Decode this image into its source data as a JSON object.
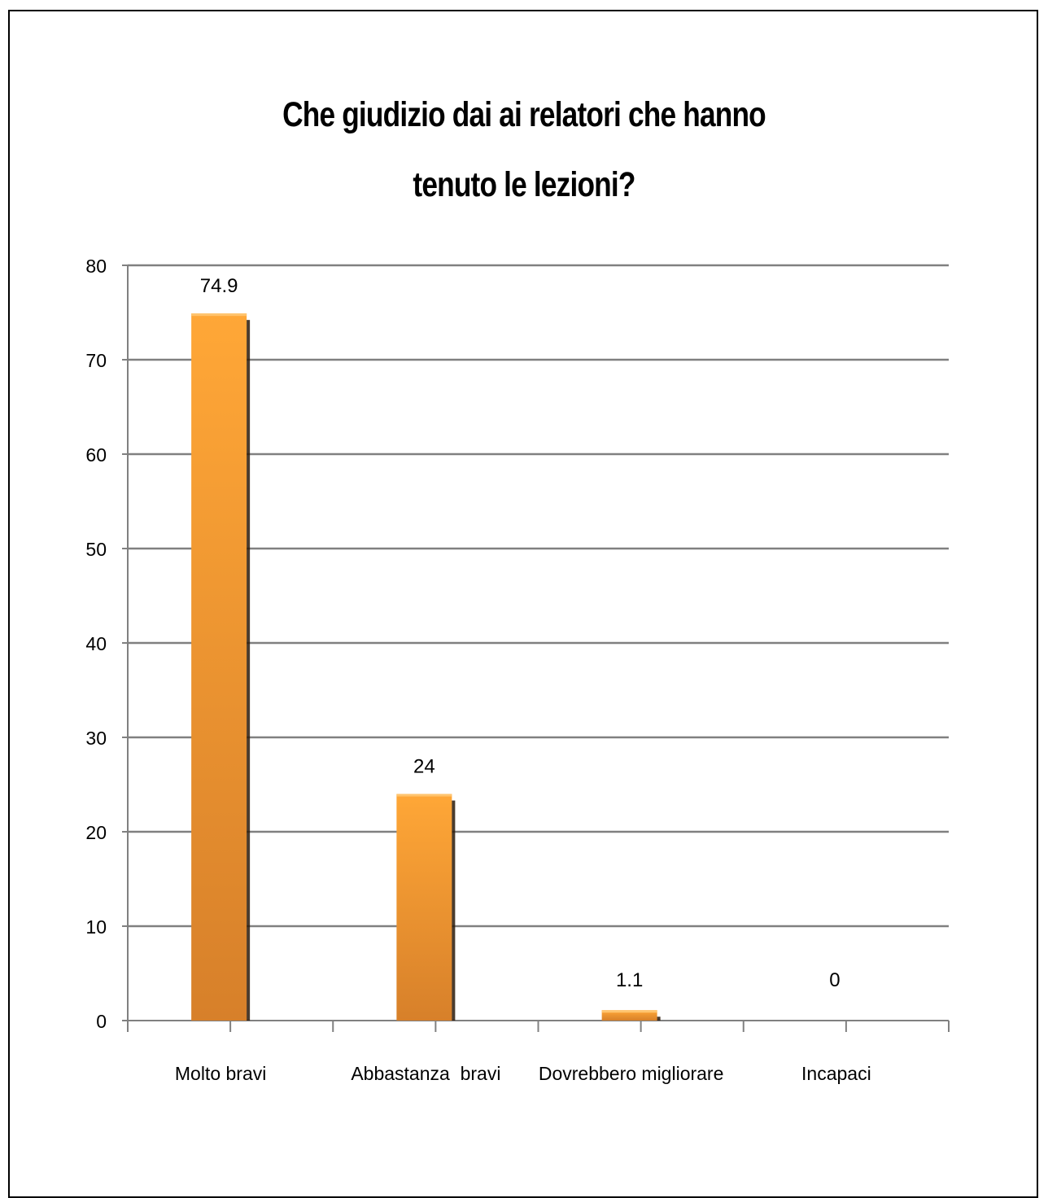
{
  "chart_data": {
    "type": "bar",
    "title_lines": [
      "Che giudizio dai ai relatori che hanno",
      "tenuto le lezioni?"
    ],
    "categories": [
      "Molto bravi",
      "Abbastanza  bravi",
      "Dovrebbero migliorare",
      "Incapaci"
    ],
    "values": [
      74.9,
      24,
      1.1,
      0
    ],
    "data_labels": [
      "74.9",
      "24",
      "1.1",
      "0"
    ],
    "ylim": [
      0,
      80
    ],
    "yticks": [
      0,
      10,
      20,
      30,
      40,
      50,
      60,
      70,
      80
    ],
    "grid": true,
    "legend": false,
    "colors": {
      "bar_top": "#ffa737",
      "bar_bottom": "#d7802a",
      "bar_shadow": "#2a1a0a",
      "grid": "#808080",
      "axis": "#808080"
    }
  }
}
